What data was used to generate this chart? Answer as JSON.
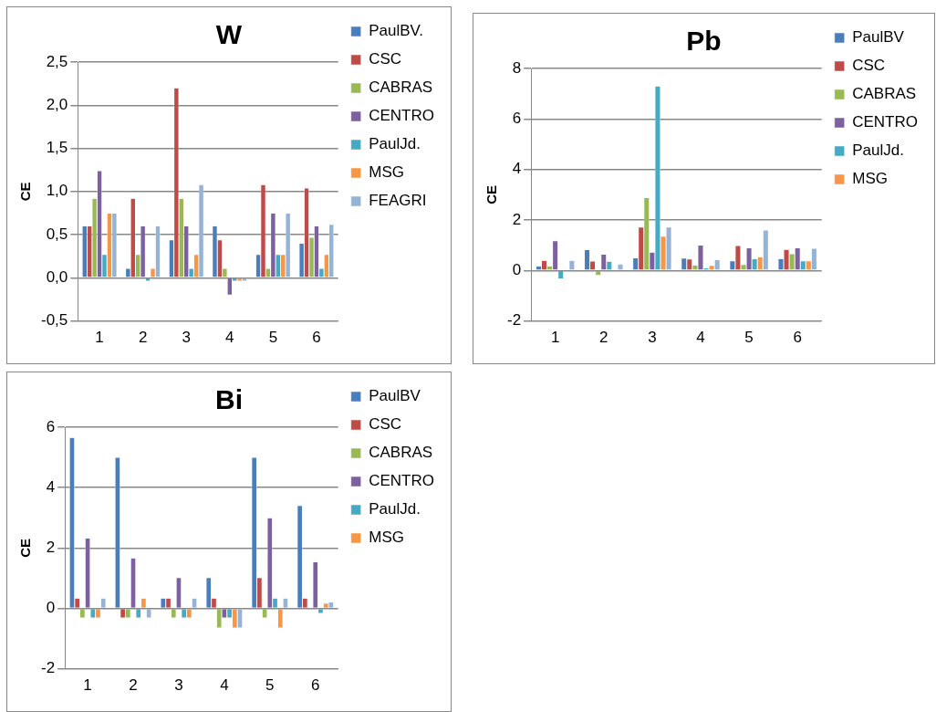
{
  "chart_data": [
    {
      "type": "bar",
      "title": "W",
      "ylabel": "CE",
      "categories": [
        "1",
        "2",
        "3",
        "4",
        "5",
        "6"
      ],
      "ylim": [
        -0.5,
        2.5
      ],
      "yticks": [
        {
          "value": -0.5,
          "label": "-0,5"
        },
        {
          "value": 0,
          "label": "0,0"
        },
        {
          "value": 0.5,
          "label": "0,5"
        },
        {
          "value": 1,
          "label": "1,0"
        },
        {
          "value": 1.5,
          "label": "1,5"
        },
        {
          "value": 2,
          "label": "2,0"
        },
        {
          "value": 2.5,
          "label": "2,5"
        }
      ],
      "grid": "y",
      "legend": "right",
      "series": [
        {
          "name": "PaulBV.",
          "color": "#4a7ebb",
          "values": [
            0.6,
            0.11,
            0.44,
            0.6,
            0.27,
            0.4
          ]
        },
        {
          "name": "CSC",
          "color": "#be4b48",
          "values": [
            0.6,
            0.92,
            2.2,
            0.44,
            1.08,
            1.04
          ]
        },
        {
          "name": "CABRAS",
          "color": "#98b954",
          "values": [
            0.92,
            0.27,
            0.92,
            0.11,
            0.11,
            0.47
          ]
        },
        {
          "name": "CENTRO",
          "color": "#7d60a0",
          "values": [
            1.24,
            0.6,
            0.6,
            -0.2,
            0.75,
            0.6
          ]
        },
        {
          "name": "PaulJd.",
          "color": "#46aac5",
          "values": [
            0.27,
            -0.04,
            0.11,
            -0.04,
            0.27,
            0.11
          ]
        },
        {
          "name": "MSG",
          "color": "#f79646",
          "values": [
            0.75,
            0.11,
            0.27,
            -0.04,
            0.27,
            0.27
          ]
        },
        {
          "name": "FEAGRI",
          "color": "#95b3d7",
          "values": [
            0.75,
            0.6,
            1.08,
            -0.04,
            0.75,
            0.62
          ]
        }
      ]
    },
    {
      "type": "bar",
      "title": "Pb",
      "ylabel": "CE",
      "categories": [
        "1",
        "2",
        "3",
        "4",
        "5",
        "6"
      ],
      "ylim": [
        -2,
        8
      ],
      "yticks": [
        -2,
        0,
        2,
        4,
        6,
        8
      ],
      "grid": "y",
      "legend": "right",
      "series": [
        {
          "name": "PaulBV",
          "color": "#4a7ebb",
          "values": [
            0.17,
            0.82,
            0.5,
            0.49,
            0.38,
            0.47
          ]
        },
        {
          "name": "CSC",
          "color": "#be4b48",
          "values": [
            0.4,
            0.37,
            1.72,
            0.45,
            0.99,
            0.83
          ]
        },
        {
          "name": "CABRAS",
          "color": "#98b954",
          "values": [
            0.17,
            -0.2,
            2.88,
            0.22,
            0.24,
            0.66
          ]
        },
        {
          "name": "CENTRO",
          "color": "#7d60a0",
          "values": [
            1.18,
            0.64,
            0.72,
            1.0,
            0.9,
            0.9
          ]
        },
        {
          "name": "PaulJd.",
          "color": "#46aac5",
          "values": [
            -0.33,
            0.36,
            7.3,
            0.1,
            0.46,
            0.38
          ]
        },
        {
          "name": "MSG",
          "color": "#f79646",
          "values": [
            null,
            0,
            1.36,
            0.2,
            0.54,
            0.38
          ]
        },
        {
          "color": "#95b3d7",
          "values": [
            0.4,
            0.25,
            1.72,
            0.43,
            1.6,
            0.88
          ]
        }
      ]
    },
    {
      "type": "bar",
      "title": "Bi",
      "ylabel": "CE",
      "categories": [
        "1",
        "2",
        "3",
        "4",
        "5",
        "6"
      ],
      "ylim": [
        -2,
        6
      ],
      "yticks": [
        -2,
        0,
        2,
        4,
        6
      ],
      "grid": "y",
      "legend": "right",
      "series": [
        {
          "name": "PaulBV",
          "color": "#4a7ebb",
          "values": [
            5.66,
            5.0,
            0.34,
            1.02,
            5.0,
            3.41
          ]
        },
        {
          "name": "CSC",
          "color": "#be4b48",
          "values": [
            0.34,
            -0.32,
            0.34,
            0.34,
            1.02,
            0.34
          ]
        },
        {
          "name": "CABRAS",
          "color": "#98b954",
          "values": [
            -0.32,
            -0.32,
            -0.32,
            -0.65,
            -0.32,
            0
          ]
        },
        {
          "name": "CENTRO",
          "color": "#7d60a0",
          "values": [
            2.33,
            1.67,
            1.02,
            -0.32,
            3.0,
            1.54
          ]
        },
        {
          "name": "PaulJd.",
          "color": "#46aac5",
          "values": [
            -0.32,
            -0.32,
            -0.32,
            -0.32,
            0.34,
            -0.17
          ]
        },
        {
          "name": "MSG",
          "color": "#f79646",
          "values": [
            -0.32,
            0.34,
            -0.32,
            -0.65,
            -0.65,
            0.17
          ]
        },
        {
          "color": "#95b3d7",
          "values": [
            0.34,
            -0.32,
            0.34,
            -0.65,
            0.34,
            0.21
          ]
        }
      ]
    }
  ]
}
